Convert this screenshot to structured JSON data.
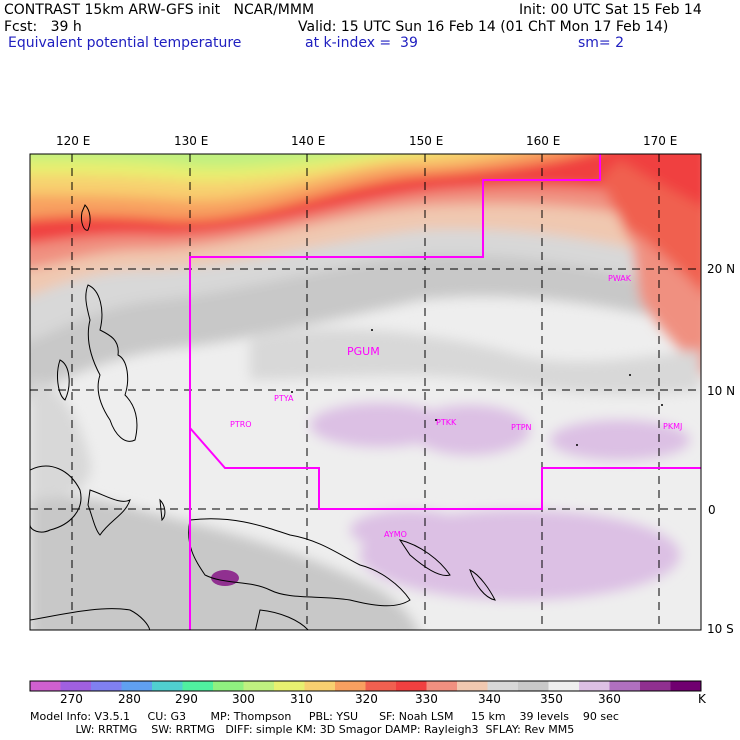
{
  "header": {
    "line1_left": "CONTRAST 15km ARW-GFS init   NCAR/MMM",
    "line1_right": "Init: 00 UTC Sat 15 Feb 14",
    "line2_left": "Fcst:   39 h",
    "line2_right": "Valid: 15 UTC Sun 16 Feb 14 (01 ChT Mon 17 Feb 14)",
    "line3_left": "Equivalent potential temperature",
    "line3_mid": "at k-index =  39",
    "line3_right": "sm= 2"
  },
  "map": {
    "lon_labels": [
      "120 E",
      "130 E",
      "140 E",
      "150 E",
      "160 E",
      "170 E"
    ],
    "lat_labels": [
      "20 N",
      "10 N",
      "0",
      "10 S"
    ],
    "stations": [
      "PGUM",
      "PTYA",
      "PTRO",
      "PTKK",
      "PTPN",
      "PKMJ",
      "PWAK",
      "AYMO"
    ],
    "boundary_color": "#ff00ff",
    "grid_style": "dashed"
  },
  "colorbar": {
    "colors": [
      "#d060d0",
      "#a060e0",
      "#8080f0",
      "#60a0f0",
      "#50d0d0",
      "#50f0a0",
      "#90f080",
      "#c0f080",
      "#e8f070",
      "#f8d070",
      "#f8a060",
      "#f06050",
      "#f04040",
      "#f09080",
      "#f0c8b0",
      "#d8d8d8",
      "#c8c8c8",
      "#eeeeee",
      "#dcc0e4",
      "#b070c0",
      "#903090",
      "#700070"
    ],
    "labels": [
      "270",
      "280",
      "290",
      "300",
      "310",
      "320",
      "330",
      "340",
      "350",
      "360"
    ],
    "unit": "K"
  },
  "footer": {
    "line1": "Model Info: V3.5.1     CU: G3       MP: Thompson     PBL: YSU      SF: Noah LSM     15 km    39 levels    90 sec",
    "line2": "             LW: RRTMG    SW: RRTMG   DIFF: simple KM: 3D Smagor DAMP: Rayleigh3  SFLAY: Rev MM5"
  }
}
